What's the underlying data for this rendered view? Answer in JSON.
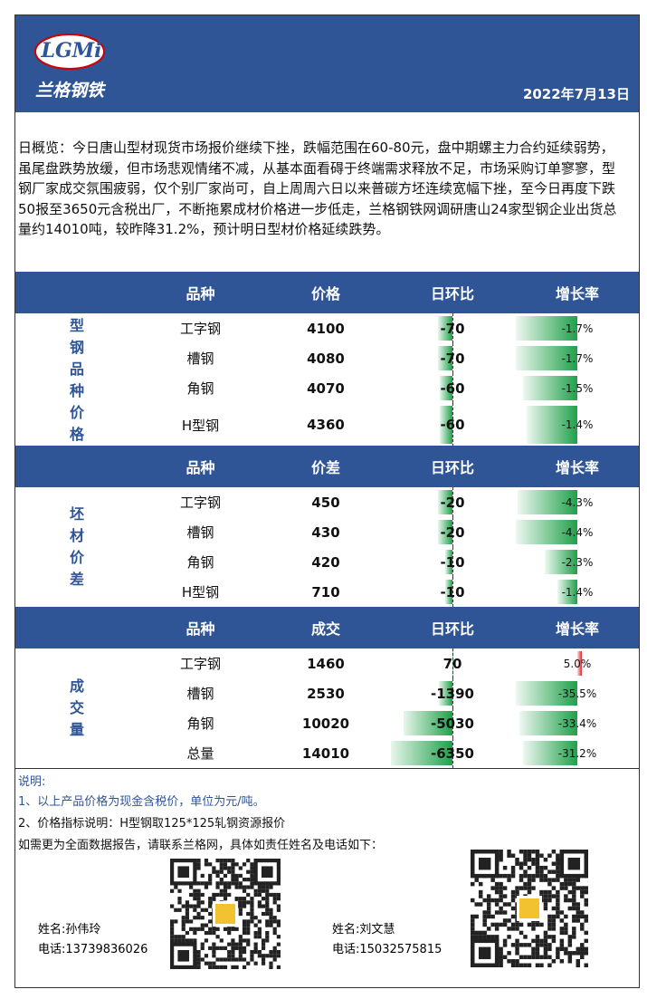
{
  "header": {
    "logo_text": "LGMi",
    "logo_subtitle": "兰格钢铁",
    "date": "2022年7月13日"
  },
  "summary": "日概览：今日唐山型材现货市场报价继续下挫，跌幅范围在60-80元，盘中期螺主力合约延续弱势，虽尾盘跌势放缓，但市场悲观情绪不减，从基本面看碍于终端需求释放不足，市场采购订单寥寥，型钢厂家成交氛围疲弱，仅个别厂家尚可，自上周周六日以来普碳方坯连续宽幅下挫，至今日再度下跌50报至3650元含税出厂，不断拖累成材价格进一步低走，兰格钢铁网调研唐山24家型钢企业出货总量约14010吨，较昨降31.2%，预计明日型材价格延续跌势。",
  "sections": [
    {
      "label": "型钢品种价格",
      "columns": [
        "品种",
        "价格",
        "日环比",
        "增长率"
      ],
      "rows": [
        {
          "name": "工字钢",
          "value": 4100,
          "change": -70,
          "growth": "-1.7%"
        },
        {
          "name": "槽钢",
          "value": 4080,
          "change": -70,
          "growth": "-1.7%"
        },
        {
          "name": "角钢",
          "value": 4070,
          "change": -60,
          "growth": "-1.5%"
        },
        {
          "name": "H型钢",
          "value": 4360,
          "change": -60,
          "growth": "-1.4%"
        }
      ]
    },
    {
      "label": "坯材价差",
      "columns": [
        "品种",
        "价差",
        "日环比",
        "增长率"
      ],
      "rows": [
        {
          "name": "工字钢",
          "value": 450,
          "change": -20,
          "growth": "-4.3%"
        },
        {
          "name": "槽钢",
          "value": 430,
          "change": -20,
          "growth": "-4.4%"
        },
        {
          "name": "角钢",
          "value": 420,
          "change": -10,
          "growth": "-2.3%"
        },
        {
          "name": "H型钢",
          "value": 710,
          "change": -10,
          "growth": "-1.4%"
        }
      ]
    },
    {
      "label": "成交量",
      "columns": [
        "品种",
        "成交",
        "日环比",
        "增长率"
      ],
      "rows": [
        {
          "name": "工字钢",
          "value": 1460,
          "change": 70,
          "growth": "5.0%"
        },
        {
          "name": "槽钢",
          "value": 2530,
          "change": -1390,
          "growth": "-35.5%"
        },
        {
          "name": "角钢",
          "value": 10020,
          "change": -5030,
          "growth": "-33.4%"
        },
        {
          "name": "总量",
          "value": 14010,
          "change": -6350,
          "growth": "-31.2%"
        }
      ]
    }
  ],
  "notes": {
    "title": "说明:",
    "lines": [
      "1、以上产品价格为现金含税价，单位为元/吨。",
      "2、价格指标说明：H型钢取125*125轧钢资源报价",
      "如需更为全面数据报告，请联系兰格网，具体如责任姓名及电话如下："
    ]
  },
  "contacts": [
    {
      "name": "姓名:孙伟玲",
      "phone": "电话:13739836026"
    },
    {
      "name": "姓名:刘文慧",
      "phone": "电话:15032575815"
    }
  ]
}
